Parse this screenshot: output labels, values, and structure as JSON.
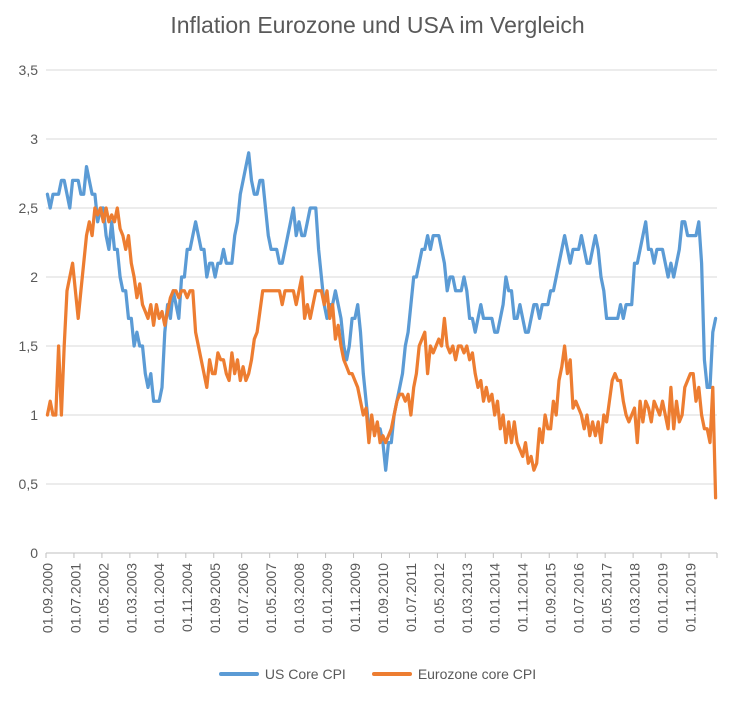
{
  "chart_data": {
    "type": "line",
    "title": "Inflation Eurozone und USA im Vergleich",
    "x_start_label": "01.09.2000",
    "x_frequency": "monthly",
    "x_tick_interval_months": 10,
    "x_tick_labels": [
      "01.09.2000",
      "01.07.2001",
      "01.05.2002",
      "01.03.2003",
      "01.01.2004",
      "01.11.2004",
      "01.09.2005",
      "01.07.2006",
      "01.05.2007",
      "01.03.2008",
      "01.01.2009",
      "01.11.2009",
      "01.09.2010",
      "01.07.2011",
      "01.05.2012",
      "01.03.2013",
      "01.01.2014",
      "01.11.2014",
      "01.09.2015",
      "01.07.2016",
      "01.05.2017",
      "01.03.2018",
      "01.01.2019",
      "01.11.2019"
    ],
    "y_tick_labels": [
      "0",
      "0,5",
      "1",
      "1,5",
      "2",
      "2,5",
      "3",
      "3,5"
    ],
    "y_tick_values": [
      0,
      0.5,
      1,
      1.5,
      2,
      2.5,
      3,
      3.5
    ],
    "ylim": [
      0,
      3.5
    ],
    "grid": true,
    "legend_position": "bottom",
    "colors": {
      "grid": "#D9D9D9",
      "axis": "#BFBFBF",
      "text": "#595959"
    },
    "series": [
      {
        "name": "US Core CPI",
        "color": "#5B9BD5",
        "values": [
          2.6,
          2.5,
          2.6,
          2.6,
          2.6,
          2.7,
          2.7,
          2.6,
          2.5,
          2.7,
          2.7,
          2.7,
          2.6,
          2.6,
          2.8,
          2.7,
          2.6,
          2.6,
          2.4,
          2.5,
          2.5,
          2.3,
          2.2,
          2.4,
          2.2,
          2.2,
          2.0,
          1.9,
          1.9,
          1.7,
          1.7,
          1.5,
          1.6,
          1.5,
          1.5,
          1.3,
          1.2,
          1.3,
          1.1,
          1.1,
          1.1,
          1.2,
          1.6,
          1.8,
          1.7,
          1.9,
          1.8,
          1.7,
          2.0,
          2.0,
          2.2,
          2.2,
          2.3,
          2.4,
          2.3,
          2.2,
          2.2,
          2.0,
          2.1,
          2.1,
          2.0,
          2.1,
          2.1,
          2.2,
          2.1,
          2.1,
          2.1,
          2.3,
          2.4,
          2.6,
          2.7,
          2.8,
          2.9,
          2.7,
          2.6,
          2.6,
          2.7,
          2.7,
          2.5,
          2.3,
          2.2,
          2.2,
          2.2,
          2.1,
          2.1,
          2.2,
          2.3,
          2.4,
          2.5,
          2.3,
          2.4,
          2.3,
          2.3,
          2.4,
          2.5,
          2.5,
          2.5,
          2.2,
          2.0,
          1.8,
          1.7,
          1.8,
          1.8,
          1.9,
          1.8,
          1.7,
          1.5,
          1.4,
          1.5,
          1.7,
          1.7,
          1.8,
          1.6,
          1.3,
          1.1,
          0.9,
          0.9,
          0.9,
          0.9,
          0.9,
          0.8,
          0.6,
          0.8,
          0.8,
          1.0,
          1.1,
          1.2,
          1.3,
          1.5,
          1.6,
          1.8,
          2.0,
          2.0,
          2.1,
          2.2,
          2.2,
          2.3,
          2.2,
          2.3,
          2.3,
          2.3,
          2.2,
          2.1,
          1.9,
          2.0,
          2.0,
          1.9,
          1.9,
          1.9,
          2.0,
          1.9,
          1.7,
          1.7,
          1.6,
          1.7,
          1.8,
          1.7,
          1.7,
          1.7,
          1.7,
          1.6,
          1.6,
          1.7,
          1.8,
          2.0,
          1.9,
          1.9,
          1.7,
          1.7,
          1.8,
          1.7,
          1.6,
          1.6,
          1.7,
          1.8,
          1.8,
          1.7,
          1.8,
          1.8,
          1.8,
          1.9,
          1.9,
          2.0,
          2.1,
          2.2,
          2.3,
          2.2,
          2.1,
          2.2,
          2.2,
          2.2,
          2.3,
          2.2,
          2.1,
          2.1,
          2.2,
          2.3,
          2.2,
          2.0,
          1.9,
          1.7,
          1.7,
          1.7,
          1.7,
          1.7,
          1.8,
          1.7,
          1.8,
          1.8,
          1.8,
          2.1,
          2.1,
          2.2,
          2.3,
          2.4,
          2.2,
          2.2,
          2.1,
          2.2,
          2.2,
          2.2,
          2.1,
          2.0,
          2.1,
          2.0,
          2.1,
          2.2,
          2.4,
          2.4,
          2.3,
          2.3,
          2.3,
          2.3,
          2.4,
          2.1,
          1.4,
          1.2,
          1.2,
          1.6,
          1.7
        ]
      },
      {
        "name": "Eurozone core CPI",
        "color": "#ED7D31",
        "values": [
          1.0,
          1.1,
          1.0,
          1.0,
          1.5,
          1.0,
          1.5,
          1.9,
          2.0,
          2.1,
          1.9,
          1.7,
          1.9,
          2.1,
          2.3,
          2.4,
          2.3,
          2.5,
          2.45,
          2.5,
          2.4,
          2.5,
          2.4,
          2.45,
          2.4,
          2.5,
          2.35,
          2.3,
          2.2,
          2.3,
          2.1,
          2.0,
          1.85,
          1.95,
          1.8,
          1.75,
          1.7,
          1.8,
          1.65,
          1.8,
          1.7,
          1.75,
          1.65,
          1.75,
          1.85,
          1.9,
          1.9,
          1.85,
          1.9,
          1.9,
          1.85,
          1.9,
          1.9,
          1.6,
          1.5,
          1.4,
          1.3,
          1.2,
          1.4,
          1.3,
          1.3,
          1.45,
          1.4,
          1.4,
          1.3,
          1.25,
          1.45,
          1.3,
          1.4,
          1.25,
          1.35,
          1.25,
          1.3,
          1.4,
          1.55,
          1.6,
          1.75,
          1.9,
          1.9,
          1.9,
          1.9,
          1.9,
          1.9,
          1.9,
          1.8,
          1.9,
          1.9,
          1.9,
          1.9,
          1.8,
          1.9,
          2.0,
          1.7,
          1.8,
          1.7,
          1.8,
          1.9,
          1.9,
          1.9,
          1.8,
          1.9,
          1.7,
          1.8,
          1.55,
          1.65,
          1.5,
          1.4,
          1.35,
          1.3,
          1.3,
          1.25,
          1.2,
          1.1,
          1.0,
          1.05,
          0.8,
          1.0,
          0.85,
          0.95,
          0.8,
          0.85,
          0.8,
          0.85,
          0.9,
          1.0,
          1.1,
          1.15,
          1.15,
          1.1,
          1.15,
          1.0,
          1.2,
          1.3,
          1.5,
          1.55,
          1.6,
          1.3,
          1.5,
          1.45,
          1.5,
          1.55,
          1.5,
          1.7,
          1.5,
          1.45,
          1.5,
          1.4,
          1.5,
          1.5,
          1.45,
          1.5,
          1.4,
          1.45,
          1.3,
          1.2,
          1.25,
          1.1,
          1.2,
          1.1,
          1.15,
          1.0,
          1.1,
          0.9,
          1.0,
          0.8,
          0.95,
          0.8,
          0.95,
          0.8,
          0.75,
          0.7,
          0.8,
          0.65,
          0.7,
          0.6,
          0.65,
          0.9,
          0.8,
          1.0,
          0.9,
          0.9,
          1.1,
          1.0,
          1.25,
          1.35,
          1.5,
          1.3,
          1.4,
          1.05,
          1.1,
          1.05,
          1.0,
          0.9,
          1.0,
          0.85,
          0.95,
          0.85,
          0.95,
          0.8,
          1.0,
          0.95,
          1.1,
          1.25,
          1.3,
          1.25,
          1.25,
          1.1,
          1.0,
          0.95,
          1.0,
          1.05,
          0.8,
          1.1,
          0.95,
          1.1,
          1.05,
          0.95,
          1.1,
          1.05,
          1.0,
          1.1,
          1.0,
          0.9,
          1.2,
          0.9,
          1.1,
          0.95,
          1.0,
          1.2,
          1.25,
          1.3,
          1.3,
          1.1,
          1.2,
          1.0,
          0.9,
          0.9,
          0.8,
          1.2,
          0.4
        ]
      }
    ]
  }
}
